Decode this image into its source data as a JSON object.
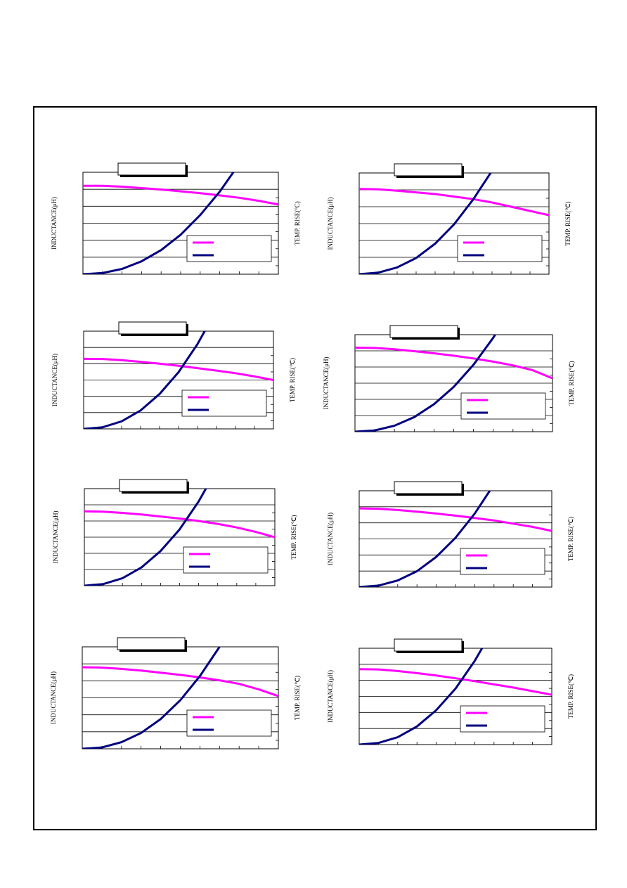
{
  "chart_data": [
    {
      "type": "line",
      "y_label": "INDUCTANCE(μH)",
      "y2_label": "TEMP. RISE(°C)",
      "x": [
        0,
        1,
        2,
        3,
        4,
        5,
        6,
        7,
        8,
        9,
        10
      ],
      "xlim": [
        0,
        10
      ],
      "ylim": [
        0,
        6
      ],
      "y2lim": [
        0,
        6
      ],
      "grid": true,
      "series": [
        {
          "color": "#ff00ff",
          "values": [
            5.2,
            5.2,
            5.15,
            5.07,
            4.98,
            4.88,
            4.77,
            4.64,
            4.5,
            4.32,
            4.1
          ]
        },
        {
          "color": "#000080",
          "axis": "y2",
          "values": [
            0,
            0.07,
            0.31,
            0.76,
            1.42,
            2.32,
            3.48,
            4.86,
            6.5,
            null,
            null
          ]
        }
      ]
    },
    {
      "type": "line",
      "y_label": "INDUCTANCE(μH)",
      "y2_label": "TEMP. RISE(℃)",
      "x": [
        0,
        1,
        2,
        3,
        4,
        5,
        6,
        7,
        8,
        9,
        10
      ],
      "xlim": [
        0,
        10
      ],
      "ylim": [
        0,
        6
      ],
      "y2lim": [
        0,
        6
      ],
      "grid": true,
      "series": [
        {
          "color": "#ff00ff",
          "values": [
            5.05,
            5.03,
            4.95,
            4.85,
            4.75,
            4.6,
            4.45,
            4.25,
            4.0,
            3.75,
            3.5
          ]
        },
        {
          "color": "#000080",
          "axis": "y2",
          "values": [
            0,
            0.09,
            0.4,
            0.96,
            1.81,
            2.96,
            4.42,
            6.13,
            null,
            null,
            null
          ]
        }
      ]
    },
    {
      "type": "line",
      "y_label": "INDUCTANCE(μH)",
      "y2_label": "TEMP. RISE(℃)",
      "x": [
        0,
        1,
        2,
        3,
        4,
        5,
        6,
        7,
        8,
        9,
        10
      ],
      "xlim": [
        0,
        10
      ],
      "ylim": [
        0,
        6
      ],
      "y2lim": [
        0,
        6
      ],
      "grid": true,
      "series": [
        {
          "color": "#ff00ff",
          "values": [
            4.3,
            4.29,
            4.22,
            4.12,
            4.0,
            3.87,
            3.73,
            3.58,
            3.42,
            3.22,
            3.0
          ]
        },
        {
          "color": "#000080",
          "axis": "y2",
          "values": [
            0,
            0.1,
            0.46,
            1.13,
            2.14,
            3.48,
            5.21,
            7.3,
            null,
            null,
            null
          ]
        }
      ]
    },
    {
      "type": "line",
      "y_label": "INDUCTANCE(μH)",
      "y2_label": "TEMP. RISE(℃)",
      "x": [
        0,
        1,
        2,
        3,
        4,
        5,
        6,
        7,
        8,
        9,
        10
      ],
      "xlim": [
        0,
        10
      ],
      "ylim": [
        0,
        6
      ],
      "y2lim": [
        0,
        6
      ],
      "grid": true,
      "series": [
        {
          "color": "#ff00ff",
          "values": [
            5.2,
            5.18,
            5.1,
            4.98,
            4.85,
            4.7,
            4.53,
            4.33,
            4.1,
            3.8,
            3.3
          ]
        },
        {
          "color": "#000080",
          "axis": "y2",
          "values": [
            0,
            0.08,
            0.37,
            0.9,
            1.7,
            2.77,
            4.14,
            5.81,
            7.8,
            null,
            null
          ]
        }
      ]
    },
    {
      "type": "line",
      "y_label": "INDUCTANCE(μH)",
      "y2_label": "TEMP. RISE(℃)",
      "x": [
        0,
        1,
        2,
        3,
        4,
        5,
        6,
        7,
        8,
        9,
        10
      ],
      "xlim": [
        0,
        10
      ],
      "ylim": [
        0,
        6
      ],
      "y2lim": [
        0,
        6
      ],
      "grid": true,
      "series": [
        {
          "color": "#ff00ff",
          "values": [
            4.6,
            4.58,
            4.5,
            4.4,
            4.28,
            4.15,
            4.0,
            3.82,
            3.6,
            3.32,
            3.0
          ]
        },
        {
          "color": "#000080",
          "axis": "y2",
          "values": [
            0,
            0.1,
            0.46,
            1.13,
            2.14,
            3.48,
            5.21,
            7.3,
            null,
            null,
            null
          ]
        }
      ]
    },
    {
      "type": "line",
      "y_label": "INDUCTANCE(μH)",
      "y2_label": "TEMP. RISE(℃)",
      "x": [
        0,
        1,
        2,
        3,
        4,
        5,
        6,
        7,
        8,
        9,
        10
      ],
      "xlim": [
        0,
        10
      ],
      "ylim": [
        0,
        6
      ],
      "y2lim": [
        0,
        6
      ],
      "grid": true,
      "series": [
        {
          "color": "#ff00ff",
          "values": [
            4.9,
            4.88,
            4.8,
            4.7,
            4.58,
            4.45,
            4.3,
            4.15,
            3.95,
            3.75,
            3.5
          ]
        },
        {
          "color": "#000080",
          "axis": "y2",
          "values": [
            0,
            0.09,
            0.41,
            0.99,
            1.88,
            3.07,
            4.58,
            6.4,
            null,
            null,
            null
          ]
        }
      ]
    },
    {
      "type": "line",
      "y_label": "INDUCTANCE(μH)",
      "y2_label": "TEMP. RISE(℃)",
      "x": [
        0,
        1,
        2,
        3,
        4,
        5,
        6,
        7,
        8,
        9,
        10
      ],
      "xlim": [
        0,
        10
      ],
      "ylim": [
        0,
        6
      ],
      "y2lim": [
        0,
        6
      ],
      "grid": true,
      "series": [
        {
          "color": "#ff00ff",
          "values": [
            4.8,
            4.78,
            4.7,
            4.6,
            4.48,
            4.35,
            4.2,
            4.03,
            3.82,
            3.5,
            3.1
          ]
        },
        {
          "color": "#000080",
          "axis": "y2",
          "values": [
            0,
            0.08,
            0.39,
            0.93,
            1.75,
            2.86,
            4.28,
            6.0,
            null,
            null,
            null
          ]
        }
      ]
    },
    {
      "type": "line",
      "y_label": "INDUCTANCE(μH)",
      "y2_label": "TEMP. RISE(℃)",
      "x": [
        0,
        1,
        2,
        3,
        4,
        5,
        6,
        7,
        8,
        9,
        10
      ],
      "xlim": [
        0,
        10
      ],
      "ylim": [
        0,
        6
      ],
      "y2lim": [
        0,
        6
      ],
      "grid": true,
      "series": [
        {
          "color": "#ff00ff",
          "values": [
            4.7,
            4.68,
            4.58,
            4.45,
            4.3,
            4.13,
            3.95,
            3.75,
            3.55,
            3.33,
            3.1
          ]
        },
        {
          "color": "#000080",
          "axis": "y2",
          "values": [
            0,
            0.1,
            0.46,
            1.13,
            2.14,
            3.48,
            5.21,
            7.3,
            null,
            null,
            null
          ]
        }
      ]
    }
  ]
}
